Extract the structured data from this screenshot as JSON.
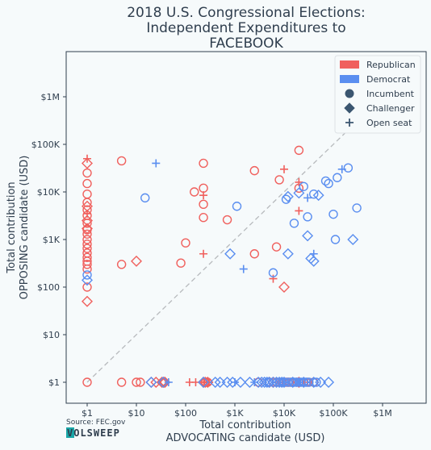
{
  "chart_data": {
    "type": "scatter",
    "title": "2018 U.S. Congressional Elections: Independent Expenditures to FACEBOOK",
    "title_lines": [
      "2018 U.S. Congressional Elections:",
      "Independent Expenditures to",
      "FACEBOOK"
    ],
    "xlabel": "Total contribution ADVOCATING candidate (USD)",
    "xlabel_lines": [
      "Total contribution",
      "ADVOCATING candidate (USD)"
    ],
    "ylabel": "Total contribution OPPOSING candidate (USD)",
    "ylabel_lines": [
      "Total contribution",
      "OPPOSING candidate (USD)"
    ],
    "x_scale": "log",
    "y_scale": "log",
    "xlim": [
      0.3,
      30000000
    ],
    "ylim": [
      0.3,
      30000000
    ],
    "x_ticks": [
      {
        "v": 1,
        "label": "$1"
      },
      {
        "v": 10,
        "label": "$10"
      },
      {
        "v": 100,
        "label": "$100"
      },
      {
        "v": 1000,
        "label": "$1K"
      },
      {
        "v": 10000,
        "label": "$10K"
      },
      {
        "v": 100000,
        "label": "$100K"
      },
      {
        "v": 1000000,
        "label": "$1M"
      }
    ],
    "y_ticks": [
      {
        "v": 1,
        "label": "$1"
      },
      {
        "v": 10,
        "label": "$10"
      },
      {
        "v": 100,
        "label": "$100"
      },
      {
        "v": 1000,
        "label": "$1K"
      },
      {
        "v": 10000,
        "label": "$10K"
      },
      {
        "v": 100000,
        "label": "$100K"
      },
      {
        "v": 1000000,
        "label": "$1M"
      }
    ],
    "reference_line": {
      "style": "dashed",
      "from": [
        1,
        1
      ],
      "to": [
        1000000,
        1000000
      ]
    },
    "grid": false,
    "legend_position": "top-right",
    "legend": [
      {
        "label": "Republican",
        "kind": "party",
        "color": "#f0605d"
      },
      {
        "label": "Democrat",
        "kind": "party",
        "color": "#5a8ef0"
      },
      {
        "label": "Incumbent",
        "kind": "status",
        "marker": "circle"
      },
      {
        "label": "Challenger",
        "kind": "status",
        "marker": "diamond"
      },
      {
        "label": "Open seat",
        "kind": "status",
        "marker": "plus"
      }
    ],
    "colors": {
      "R": "#f0605d",
      "D": "#5a8ef0"
    },
    "series": [
      {
        "party": "R",
        "status": "I",
        "points": [
          [
            1,
            25000
          ],
          [
            1,
            15000
          ],
          [
            1,
            9000
          ],
          [
            1,
            6000
          ],
          [
            1,
            4200
          ],
          [
            1,
            3200
          ],
          [
            1,
            2200
          ],
          [
            1,
            1600
          ],
          [
            1,
            1300
          ],
          [
            1,
            1000
          ],
          [
            1,
            800
          ],
          [
            1,
            650
          ],
          [
            1,
            520
          ],
          [
            1,
            420
          ],
          [
            1,
            350
          ],
          [
            1,
            300
          ],
          [
            1,
            240
          ],
          [
            1,
            100
          ],
          [
            5,
            45000
          ],
          [
            5,
            300
          ],
          [
            80,
            320
          ],
          [
            100,
            850
          ],
          [
            150,
            10000
          ],
          [
            230,
            40000
          ],
          [
            230,
            12000
          ],
          [
            230,
            5500
          ],
          [
            230,
            2900
          ],
          [
            700,
            2600
          ],
          [
            2500,
            28000
          ],
          [
            2500,
            500
          ],
          [
            7000,
            700
          ],
          [
            8000,
            18000
          ],
          [
            20000,
            12000
          ],
          [
            20000,
            75000
          ],
          [
            1,
            1
          ],
          [
            5,
            1
          ],
          [
            10,
            1
          ],
          [
            12,
            1
          ],
          [
            250,
            1
          ],
          [
            280,
            1
          ],
          [
            3000,
            1
          ],
          [
            5000,
            1
          ],
          [
            6000,
            1
          ],
          [
            7000,
            1
          ],
          [
            8000,
            1
          ],
          [
            9000,
            1
          ],
          [
            10000,
            1
          ],
          [
            11000,
            1
          ],
          [
            12000,
            1
          ],
          [
            13000,
            1
          ],
          [
            15000,
            1
          ],
          [
            18000,
            1
          ],
          [
            25000,
            1
          ],
          [
            30000,
            1
          ],
          [
            40000,
            1
          ]
        ]
      },
      {
        "party": "R",
        "status": "C",
        "points": [
          [
            1,
            40000
          ],
          [
            1,
            5000
          ],
          [
            1,
            2500
          ],
          [
            1,
            1700
          ],
          [
            1,
            50
          ],
          [
            10,
            350
          ],
          [
            10000,
            100
          ],
          [
            20,
            1
          ],
          [
            25,
            1
          ],
          [
            33,
            1
          ],
          [
            36,
            1
          ],
          [
            38,
            1
          ],
          [
            230,
            1
          ],
          [
            250,
            1
          ],
          [
            280,
            1
          ],
          [
            5000,
            1
          ],
          [
            6000,
            1
          ],
          [
            20000,
            1
          ]
        ]
      },
      {
        "party": "R",
        "status": "O",
        "points": [
          [
            1,
            50000
          ],
          [
            1,
            3500
          ],
          [
            230,
            8500
          ],
          [
            230,
            500
          ],
          [
            6000,
            150
          ],
          [
            10000,
            30000
          ],
          [
            20000,
            16000
          ],
          [
            20000,
            4000
          ],
          [
            120,
            1
          ],
          [
            160,
            1
          ],
          [
            240,
            1
          ],
          [
            260,
            1
          ],
          [
            300,
            1
          ],
          [
            8000,
            1
          ],
          [
            30000,
            1
          ]
        ]
      },
      {
        "party": "D",
        "status": "I",
        "points": [
          [
            1,
            180
          ],
          [
            15,
            7500
          ],
          [
            1100,
            5000
          ],
          [
            6000,
            200
          ],
          [
            11000,
            7000
          ],
          [
            16000,
            2200
          ],
          [
            25000,
            13000
          ],
          [
            30000,
            3000
          ],
          [
            40000,
            9000
          ],
          [
            70000,
            17000
          ],
          [
            80000,
            15000
          ],
          [
            100000,
            3400
          ],
          [
            110000,
            1000
          ],
          [
            120000,
            20000
          ],
          [
            200000,
            32000
          ],
          [
            300000,
            4600
          ],
          [
            5000,
            1
          ],
          [
            8000,
            1
          ],
          [
            10000,
            1
          ],
          [
            12000,
            1
          ],
          [
            14000,
            1
          ],
          [
            16000,
            1
          ],
          [
            18000,
            1
          ],
          [
            20000,
            1
          ],
          [
            22000,
            1
          ],
          [
            25000,
            1
          ],
          [
            28000,
            1
          ],
          [
            32000,
            1
          ],
          [
            45000,
            1
          ]
        ]
      },
      {
        "party": "D",
        "status": "C",
        "points": [
          [
            1,
            140
          ],
          [
            20,
            1
          ],
          [
            35,
            1
          ],
          [
            800,
            500
          ],
          [
            12000,
            8000
          ],
          [
            12000,
            500
          ],
          [
            20000,
            9500
          ],
          [
            30000,
            1200
          ],
          [
            35000,
            400
          ],
          [
            40000,
            350
          ],
          [
            50000,
            8500
          ],
          [
            250000,
            1000
          ],
          [
            230,
            1
          ],
          [
            400,
            1
          ],
          [
            500,
            1
          ],
          [
            700,
            1
          ],
          [
            900,
            1
          ],
          [
            1300,
            1
          ],
          [
            2000,
            1
          ],
          [
            3000,
            1
          ],
          [
            3500,
            1
          ],
          [
            4000,
            1
          ],
          [
            4500,
            1
          ],
          [
            5000,
            1
          ],
          [
            6000,
            1
          ],
          [
            7000,
            1
          ],
          [
            8000,
            1
          ],
          [
            9000,
            1
          ],
          [
            10000,
            1
          ],
          [
            15000,
            1
          ],
          [
            25000,
            1
          ],
          [
            40000,
            1
          ],
          [
            55000,
            1
          ],
          [
            80000,
            1
          ]
        ]
      },
      {
        "party": "D",
        "status": "O",
        "points": [
          [
            25,
            40000
          ],
          [
            1500,
            240
          ],
          [
            30000,
            7500
          ],
          [
            40000,
            500
          ],
          [
            150000,
            30000
          ],
          [
            400000,
            350000
          ],
          [
            45,
            1
          ],
          [
            1000,
            1
          ],
          [
            2500,
            1
          ],
          [
            10000,
            1
          ],
          [
            20000,
            1
          ]
        ]
      }
    ]
  },
  "source": {
    "label": "Source: FEC.gov",
    "logo_text": "VOLSWEEP"
  }
}
